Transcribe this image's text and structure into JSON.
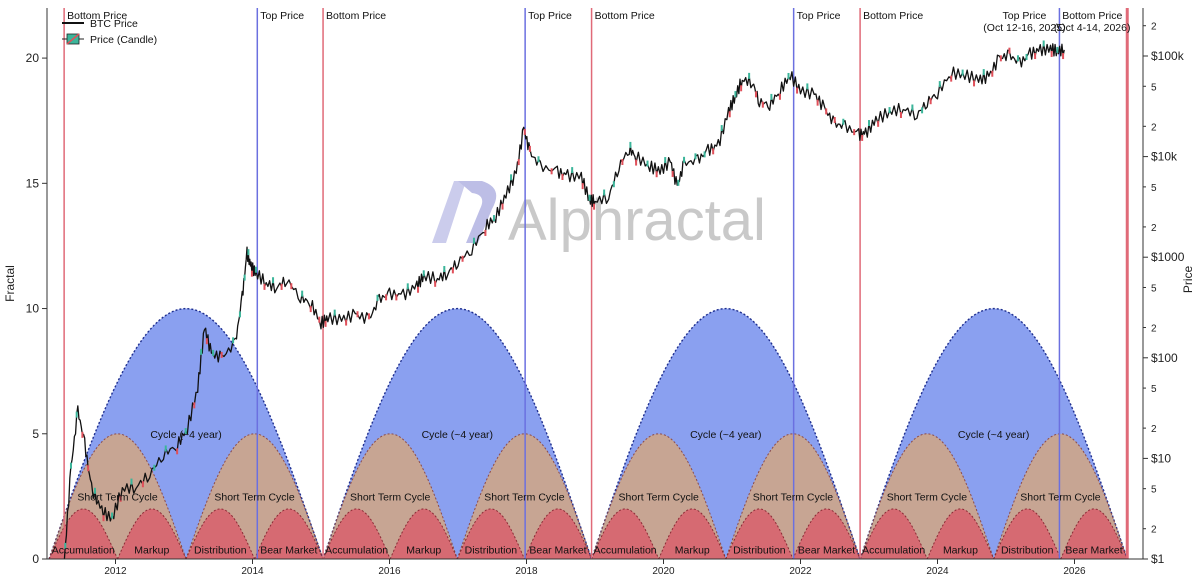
{
  "chart_data": {
    "type": "line",
    "x_axis": {
      "range": [
        2011.0,
        2027.0
      ],
      "ticks": [
        2012,
        2014,
        2016,
        2018,
        2020,
        2022,
        2024,
        2026
      ]
    },
    "left_axis": {
      "label": "Fractal",
      "range": [
        0,
        22
      ],
      "ticks": [
        0,
        5,
        10,
        15,
        20
      ]
    },
    "right_axis": {
      "label": "Price",
      "scale": "log",
      "range": [
        1,
        300000
      ],
      "major_ticks": [
        {
          "value": 1,
          "label": "$1"
        },
        {
          "value": 10,
          "label": "$10"
        },
        {
          "value": 100,
          "label": "$100"
        },
        {
          "value": 1000,
          "label": "$1000"
        },
        {
          "value": 10000,
          "label": "$10k"
        },
        {
          "value": 100000,
          "label": "$100k"
        }
      ],
      "minor_ticks": [
        {
          "value": 2,
          "label": "2"
        },
        {
          "value": 5,
          "label": "5"
        },
        {
          "value": 20,
          "label": "2"
        },
        {
          "value": 50,
          "label": "5"
        },
        {
          "value": 200,
          "label": "2"
        },
        {
          "value": 500,
          "label": "5"
        },
        {
          "value": 2000,
          "label": "2"
        },
        {
          "value": 5000,
          "label": "5"
        },
        {
          "value": 20000,
          "label": "2"
        },
        {
          "value": 50000,
          "label": "5"
        },
        {
          "value": 200000,
          "label": "2"
        }
      ]
    },
    "legend": {
      "placement": "top-left",
      "entries": [
        {
          "label": "BTC Price",
          "style": "line"
        },
        {
          "label": "Price (Candle)",
          "style": "candle"
        }
      ]
    },
    "watermark": "Alphractal",
    "vertical_markers": [
      {
        "x": 2011.25,
        "kind": "bottom",
        "label": "Bottom Price"
      },
      {
        "x": 2014.07,
        "kind": "top",
        "label": "Top Price"
      },
      {
        "x": 2015.03,
        "kind": "bottom",
        "label": "Bottom Price"
      },
      {
        "x": 2017.98,
        "kind": "top",
        "label": "Top Price"
      },
      {
        "x": 2018.95,
        "kind": "bottom",
        "label": "Bottom Price"
      },
      {
        "x": 2021.9,
        "kind": "top",
        "label": "Top Price"
      },
      {
        "x": 2022.87,
        "kind": "bottom",
        "label": "Bottom Price"
      },
      {
        "x": 2025.78,
        "kind": "top",
        "label": "Top Price",
        "label2": "(Oct 12-16, 2025)"
      },
      {
        "x": 2026.77,
        "kind": "bottom",
        "label": "Bottom Price",
        "label2": "(Oct 4-14, 2026)"
      }
    ],
    "cycles": [
      {
        "start": 2011.03,
        "end": 2015.03,
        "peak": 10,
        "label": "Cycle (~4 year)"
      },
      {
        "start": 2015.03,
        "end": 2018.95,
        "peak": 10,
        "label": "Cycle (~4 year)"
      },
      {
        "start": 2018.95,
        "end": 2022.87,
        "peak": 10,
        "label": "Cycle (~4 year)"
      },
      {
        "start": 2022.87,
        "end": 2026.77,
        "peak": 10,
        "label": "Cycle (~4 year)"
      }
    ],
    "short_cycles": {
      "peak": 5,
      "label": "Short Term Cycle",
      "spans": [
        [
          2011.03,
          2013.03
        ],
        [
          2013.03,
          2015.03
        ],
        [
          2015.03,
          2016.99
        ],
        [
          2016.99,
          2018.95
        ],
        [
          2018.95,
          2020.91
        ],
        [
          2020.91,
          2022.87
        ],
        [
          2022.87,
          2024.82
        ],
        [
          2024.82,
          2026.77
        ]
      ]
    },
    "phases": {
      "peak": 2,
      "labels": [
        "Accumulation",
        "Markup",
        "Distribution",
        "Bear Market"
      ],
      "spans": [
        [
          2011.03,
          2012.03
        ],
        [
          2012.03,
          2013.03
        ],
        [
          2013.03,
          2014.03
        ],
        [
          2014.03,
          2015.03
        ],
        [
          2015.03,
          2016.01
        ],
        [
          2016.01,
          2016.99
        ],
        [
          2016.99,
          2017.97
        ],
        [
          2017.97,
          2018.95
        ],
        [
          2018.95,
          2019.93
        ],
        [
          2019.93,
          2020.91
        ],
        [
          2020.91,
          2021.89
        ],
        [
          2021.89,
          2022.87
        ],
        [
          2022.87,
          2023.85
        ],
        [
          2023.85,
          2024.82
        ],
        [
          2024.82,
          2025.8
        ],
        [
          2025.8,
          2026.77
        ]
      ]
    },
    "colors": {
      "cycle_fill": "#8aa0f0",
      "short_fill": "#c7a593",
      "phase_fill": "#d66a72",
      "arc_line": "#1f2f8f",
      "bottom_line": "#e06a78",
      "top_line": "#6b70e0",
      "price_line": "#111111",
      "candle_up": "#3bb59a",
      "candle_down": "#e0505a"
    },
    "series": [
      {
        "name": "BTC Price",
        "price_scale": "log",
        "points": [
          [
            2011.25,
            0.9
          ],
          [
            2011.35,
            8
          ],
          [
            2011.45,
            30
          ],
          [
            2011.55,
            14
          ],
          [
            2011.65,
            5
          ],
          [
            2011.8,
            3
          ],
          [
            2011.95,
            2.5
          ],
          [
            2012.1,
            5
          ],
          [
            2012.3,
            5.2
          ],
          [
            2012.5,
            7
          ],
          [
            2012.7,
            11
          ],
          [
            2012.9,
            13.5
          ],
          [
            2013.05,
            20
          ],
          [
            2013.2,
            50
          ],
          [
            2013.3,
            200
          ],
          [
            2013.4,
            110
          ],
          [
            2013.55,
            100
          ],
          [
            2013.75,
            140
          ],
          [
            2013.85,
            400
          ],
          [
            2013.92,
            1100
          ],
          [
            2013.98,
            800
          ],
          [
            2014.05,
            700
          ],
          [
            2014.2,
            550
          ],
          [
            2014.35,
            500
          ],
          [
            2014.5,
            600
          ],
          [
            2014.7,
            400
          ],
          [
            2014.85,
            350
          ],
          [
            2015.0,
            220
          ],
          [
            2015.1,
            250
          ],
          [
            2015.3,
            240
          ],
          [
            2015.5,
            270
          ],
          [
            2015.7,
            240
          ],
          [
            2015.85,
            380
          ],
          [
            2016.0,
            430
          ],
          [
            2016.2,
            420
          ],
          [
            2016.4,
            520
          ],
          [
            2016.5,
            650
          ],
          [
            2016.7,
            610
          ],
          [
            2016.85,
            700
          ],
          [
            2017.0,
            900
          ],
          [
            2017.2,
            1200
          ],
          [
            2017.4,
            2000
          ],
          [
            2017.55,
            2500
          ],
          [
            2017.7,
            4200
          ],
          [
            2017.85,
            7000
          ],
          [
            2017.96,
            19000
          ],
          [
            2018.05,
            11000
          ],
          [
            2018.2,
            8000
          ],
          [
            2018.45,
            7000
          ],
          [
            2018.6,
            6500
          ],
          [
            2018.8,
            6300
          ],
          [
            2018.92,
            3700
          ],
          [
            2019.0,
            3600
          ],
          [
            2019.2,
            4000
          ],
          [
            2019.35,
            8000
          ],
          [
            2019.5,
            12000
          ],
          [
            2019.6,
            10000
          ],
          [
            2019.8,
            8000
          ],
          [
            2019.95,
            7200
          ],
          [
            2020.1,
            9000
          ],
          [
            2020.2,
            5000
          ],
          [
            2020.3,
            8500
          ],
          [
            2020.5,
            9200
          ],
          [
            2020.65,
            11500
          ],
          [
            2020.8,
            13000
          ],
          [
            2020.95,
            28000
          ],
          [
            2021.05,
            40000
          ],
          [
            2021.15,
            58000
          ],
          [
            2021.3,
            55000
          ],
          [
            2021.4,
            35000
          ],
          [
            2021.55,
            33000
          ],
          [
            2021.7,
            45000
          ],
          [
            2021.85,
            65000
          ],
          [
            2022.0,
            45000
          ],
          [
            2022.2,
            42000
          ],
          [
            2022.35,
            30000
          ],
          [
            2022.5,
            21000
          ],
          [
            2022.65,
            20000
          ],
          [
            2022.85,
            16500
          ],
          [
            2022.95,
            17000
          ],
          [
            2023.1,
            23000
          ],
          [
            2023.3,
            28000
          ],
          [
            2023.5,
            30000
          ],
          [
            2023.7,
            26000
          ],
          [
            2023.85,
            35000
          ],
          [
            2024.0,
            43000
          ],
          [
            2024.2,
            68000
          ],
          [
            2024.4,
            65000
          ],
          [
            2024.6,
            58000
          ],
          [
            2024.75,
            63000
          ],
          [
            2024.9,
            95000
          ],
          [
            2025.05,
            102000
          ],
          [
            2025.2,
            84000
          ],
          [
            2025.35,
            105000
          ],
          [
            2025.5,
            115000
          ],
          [
            2025.65,
            118000
          ],
          [
            2025.75,
            112000
          ],
          [
            2025.85,
            115000
          ]
        ]
      }
    ]
  }
}
